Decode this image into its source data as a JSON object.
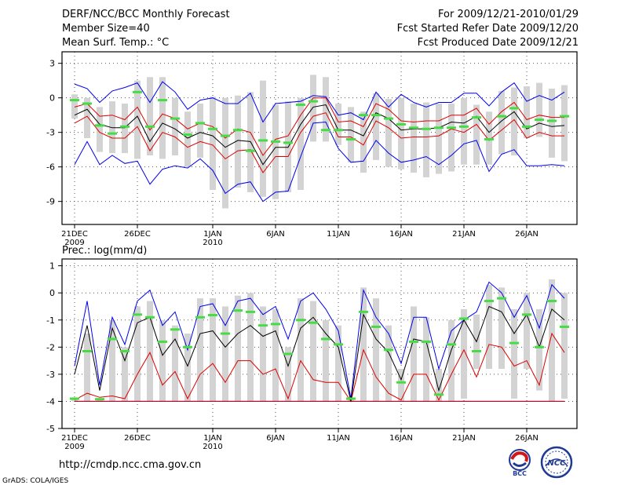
{
  "header": {
    "left": [
      "DERF/NCC/BCC Monthly Forecast",
      "Member Size=40",
      "Mean Surf. Temp.: °C"
    ],
    "right": [
      "For 2009/12/21-2010/01/29",
      "Fcst Started Refer Date 2009/12/20",
      "Fcst Produced Date 2009/12/21"
    ]
  },
  "footer": {
    "url": "http://cmdp.ncc.cma.gov.cn",
    "credit": "GrADS: COLA/IGES"
  },
  "logos": {
    "bcc": "BCC",
    "ncc": "NCC"
  },
  "colors": {
    "box": "#d3d3d3",
    "median": "#44dd44",
    "mean": "#000000",
    "upper": "#0000ee",
    "lower": "#dd0000",
    "grid": "#555555"
  },
  "chart_data": [
    {
      "type": "line",
      "title": "Mean Surf. Temp.: °C",
      "xlabel": "",
      "ylabel": "",
      "ylim": [
        -11,
        4
      ],
      "yticks": [
        3,
        0,
        -3,
        -6,
        -9
      ],
      "ytick_labels": [
        "3",
        "0",
        "-3",
        "-6",
        "-9"
      ],
      "xticks": [
        {
          "day": 1,
          "label": "21DEC",
          "sub": "2009"
        },
        {
          "day": 6,
          "label": "26DEC",
          "sub": ""
        },
        {
          "day": 12,
          "label": "1JAN",
          "sub": "2010"
        },
        {
          "day": 17,
          "label": "6JAN",
          "sub": ""
        },
        {
          "day": 22,
          "label": "11JAN",
          "sub": ""
        },
        {
          "day": 27,
          "label": "16JAN",
          "sub": ""
        },
        {
          "day": 32,
          "label": "21JAN",
          "sub": ""
        },
        {
          "day": 37,
          "label": "26JAN",
          "sub": ""
        }
      ],
      "x": [
        1,
        2,
        3,
        4,
        5,
        6,
        7,
        8,
        9,
        10,
        11,
        12,
        13,
        14,
        15,
        16,
        17,
        18,
        19,
        20,
        21,
        22,
        23,
        24,
        25,
        26,
        27,
        28,
        29,
        30,
        31,
        32,
        33,
        34,
        35,
        36,
        37,
        38,
        39,
        40
      ],
      "series": [
        {
          "name": "box_high",
          "values": [
            0.3,
            0,
            -0.8,
            -0.3,
            -0.5,
            1.5,
            1.8,
            1.8,
            0,
            -1.2,
            -0.5,
            0.1,
            0,
            0.2,
            0.5,
            1.5,
            -0.6,
            -0.3,
            0,
            2,
            1.8,
            -0.5,
            -0.8,
            -1.2,
            0.4,
            -0.1,
            0,
            -0.5,
            -0.4,
            -0.5,
            -0.5,
            0,
            -0.6,
            -1.2,
            0.6,
            0.9,
            1,
            1.3,
            0.8,
            1.1
          ]
        },
        {
          "name": "box_low",
          "values": [
            -1.8,
            -3.5,
            -4.7,
            -4.8,
            -4.8,
            -5.3,
            -5,
            -5.3,
            -5,
            -6,
            -5.2,
            -8,
            -9.6,
            -7.8,
            -8.2,
            -8.6,
            -8.8,
            -8.2,
            -8,
            -3.8,
            -3.8,
            -4.1,
            -5.6,
            -6.5,
            -5.4,
            -6,
            -6.2,
            -6.5,
            -6.9,
            -6.6,
            -6.4,
            -5.8,
            -5.8,
            -5.8,
            -4.9,
            -5,
            -3.5,
            -3.4,
            -5.2,
            -5.5
          ]
        },
        {
          "name": "median",
          "values": [
            -0.2,
            -0.5,
            -2.4,
            -3.1,
            -2.5,
            0.5,
            -2.5,
            -0.2,
            -1.8,
            -3.2,
            -2.2,
            -2.7,
            -3.3,
            -2.8,
            -4.6,
            -3.7,
            -3.8,
            -3.9,
            -0.6,
            -0.3,
            -2.8,
            -2.8,
            -3.6,
            -1.5,
            -1.5,
            -1.8,
            -2.3,
            -2.6,
            -2.7,
            -2.6,
            -2.6,
            -2.5,
            -1.7,
            -3.6,
            -1.6,
            -0.9,
            -2.5,
            -1.9,
            -2,
            -1.6
          ]
        },
        {
          "name": "mean",
          "values": [
            -1.5,
            -1.0,
            -2.3,
            -2.6,
            -2.6,
            -1.6,
            -3.8,
            -2.2,
            -2.7,
            -3.5,
            -3.0,
            -3.3,
            -4.3,
            -3.7,
            -3.8,
            -5.8,
            -4.3,
            -4.3,
            -2.3,
            -0.8,
            -0.6,
            -2.8,
            -2.8,
            -3.3,
            -1.3,
            -1.8,
            -2.8,
            -2.7,
            -2.7,
            -2.6,
            -2.1,
            -2.2,
            -1.6,
            -3.0,
            -2.0,
            -1.2,
            -2.7,
            -2.2,
            -2.5,
            -2.4
          ]
        },
        {
          "name": "upper",
          "values": [
            1.2,
            0.8,
            -0.4,
            0.6,
            0.9,
            1.3,
            -0.4,
            1.4,
            0.5,
            -1.0,
            -0.2,
            0.0,
            -0.5,
            -0.5,
            0.4,
            -2.1,
            -0.5,
            -0.4,
            -0.3,
            0.2,
            0.1,
            -1.5,
            -1.3,
            -1.9,
            0.5,
            -0.8,
            0.3,
            -0.4,
            -0.8,
            -0.4,
            -0.4,
            0.4,
            0.4,
            -0.7,
            0.5,
            1.3,
            -0.3,
            0.2,
            -0.2,
            0.5
          ]
        },
        {
          "name": "lower",
          "values": [
            -5.8,
            -3.8,
            -5.8,
            -5.0,
            -5.7,
            -5.5,
            -7.5,
            -6.2,
            -5.9,
            -6.1,
            -5.3,
            -6.3,
            -8.3,
            -7.5,
            -7.3,
            -9.0,
            -8.2,
            -8.1,
            -5.1,
            -2.2,
            -2.1,
            -4.4,
            -5.6,
            -5.5,
            -3.7,
            -4.8,
            -5.6,
            -5.4,
            -5.1,
            -5.8,
            -5.0,
            -4.0,
            -3.7,
            -6.4,
            -4.9,
            -4.5,
            -5.9,
            -5.9,
            -5.8,
            -5.9
          ]
        },
        {
          "name": "upper_red",
          "values": [
            -0.8,
            -0.5,
            -1.6,
            -1.5,
            -1.9,
            -0.8,
            -2.8,
            -1.4,
            -1.8,
            -2.7,
            -2.2,
            -2.5,
            -3.5,
            -2.7,
            -3.0,
            -5.0,
            -3.6,
            -3.3,
            -1.5,
            0.0,
            0.0,
            -2.1,
            -2.0,
            -2.5,
            -0.5,
            -1.0,
            -2.0,
            -2.1,
            -2.0,
            -2.0,
            -1.5,
            -1.5,
            -0.9,
            -2.3,
            -1.2,
            -0.4,
            -1.9,
            -1.5,
            -1.7,
            -1.7
          ]
        },
        {
          "name": "lower_red",
          "values": [
            -2.2,
            -1.6,
            -3.0,
            -3.5,
            -3.5,
            -2.5,
            -4.6,
            -3.0,
            -3.4,
            -4.3,
            -3.8,
            -4.1,
            -5.3,
            -4.6,
            -4.5,
            -6.5,
            -5.1,
            -5.1,
            -3.0,
            -1.6,
            -1.3,
            -3.4,
            -3.4,
            -4.1,
            -2.0,
            -2.6,
            -3.5,
            -3.4,
            -3.4,
            -3.3,
            -2.7,
            -3.0,
            -2.3,
            -3.7,
            -2.8,
            -1.9,
            -3.5,
            -3.0,
            -3.3,
            -3.3
          ]
        }
      ]
    },
    {
      "type": "line",
      "title": "Prec.: log(mm/d)",
      "xlabel": "",
      "ylabel": "",
      "ylim": [
        -5,
        1.25
      ],
      "yticks": [
        1,
        0,
        -1,
        -2,
        -3,
        -4,
        -5
      ],
      "ytick_labels": [
        "1",
        "0",
        "-1",
        "-2",
        "-3",
        "-4",
        "-5"
      ],
      "xticks": [
        {
          "day": 1,
          "label": "21DEC",
          "sub": "2009"
        },
        {
          "day": 6,
          "label": "26DEC",
          "sub": ""
        },
        {
          "day": 12,
          "label": "1JAN",
          "sub": "2010"
        },
        {
          "day": 17,
          "label": "6JAN",
          "sub": ""
        },
        {
          "day": 22,
          "label": "11JAN",
          "sub": ""
        },
        {
          "day": 27,
          "label": "16JAN",
          "sub": ""
        },
        {
          "day": 32,
          "label": "21JAN",
          "sub": ""
        },
        {
          "day": 37,
          "label": "26JAN",
          "sub": ""
        }
      ],
      "x": [
        1,
        2,
        3,
        4,
        5,
        6,
        7,
        8,
        9,
        10,
        11,
        12,
        13,
        14,
        15,
        16,
        17,
        18,
        19,
        20,
        21,
        22,
        23,
        24,
        25,
        26,
        27,
        28,
        29,
        30,
        31,
        32,
        33,
        34,
        35,
        36,
        37,
        38,
        39,
        40
      ],
      "series": [
        {
          "name": "box_high",
          "values": [
            -3.9,
            -1.5,
            -3.9,
            -1.0,
            -2.0,
            -0.5,
            -0.3,
            -1.0,
            -1.2,
            -1.5,
            -0.2,
            -0.2,
            -0.5,
            -0.1,
            0.0,
            -0.5,
            -0.6,
            -2.0,
            -0.2,
            -0.3,
            -1.0,
            -1.2,
            -3.9,
            0.2,
            -0.2,
            -1.2,
            -2.8,
            -0.5,
            -0.9,
            -2.8,
            -1.0,
            -0.6,
            -0.8,
            0.3,
            0.2,
            -0.6,
            0.0,
            -0.6,
            0.5,
            0.0
          ]
        },
        {
          "name": "box_low",
          "values": [
            -4.0,
            -4.0,
            -4.0,
            -4.0,
            -4.0,
            -4.0,
            -4.0,
            -4.0,
            -4.0,
            -4.0,
            -4.0,
            -4.0,
            -4.0,
            -4.0,
            -4.0,
            -4.0,
            -4.0,
            -4.0,
            -4.0,
            -4.0,
            -4.0,
            -4.0,
            -4.0,
            -4.0,
            -4.0,
            -4.0,
            -4.0,
            -4.0,
            -4.0,
            -4.0,
            -4.0,
            -3.9,
            -2.8,
            -2.8,
            -2.8,
            -3.9,
            -2.8,
            -3.6,
            -4.0,
            -3.9
          ]
        },
        {
          "name": "median",
          "values": [
            -3.9,
            -2.15,
            -3.92,
            -1.7,
            -2.15,
            -0.8,
            -0.9,
            -1.8,
            -1.35,
            -2.0,
            -0.9,
            -0.82,
            -1.5,
            -0.65,
            -0.7,
            -1.2,
            -1.15,
            -2.25,
            -1.0,
            -1.1,
            -1.7,
            -1.9,
            -3.9,
            -0.7,
            -1.25,
            -2.1,
            -3.3,
            -1.8,
            -1.8,
            -3.75,
            -1.9,
            -0.95,
            -2.15,
            -0.3,
            -0.2,
            -1.85,
            -0.8,
            -2.0,
            -0.3,
            -1.25
          ]
        },
        {
          "name": "mean",
          "values": [
            -3.0,
            -1.2,
            -3.6,
            -1.3,
            -2.5,
            -1.1,
            -0.9,
            -2.3,
            -1.7,
            -2.7,
            -1.5,
            -1.4,
            -2.0,
            -1.5,
            -1.2,
            -1.6,
            -1.4,
            -2.7,
            -1.3,
            -0.9,
            -1.5,
            -2.0,
            -4.0,
            -0.8,
            -1.7,
            -2.2,
            -3.2,
            -1.7,
            -1.8,
            -3.6,
            -2.1,
            -1.0,
            -1.8,
            -0.5,
            -0.7,
            -1.5,
            -0.8,
            -2.0,
            -0.6,
            -1.0
          ]
        },
        {
          "name": "upper",
          "values": [
            -2.7,
            -0.3,
            -3.4,
            -0.9,
            -1.9,
            -0.3,
            0.1,
            -1.2,
            -0.7,
            -2.1,
            -0.5,
            -0.4,
            -1.2,
            -0.3,
            -0.2,
            -0.8,
            -0.5,
            -1.7,
            -0.3,
            0.0,
            -0.6,
            -1.4,
            -3.9,
            0.1,
            -0.9,
            -1.5,
            -2.6,
            -0.9,
            -0.9,
            -2.8,
            -1.4,
            -1.0,
            -0.7,
            0.4,
            0.0,
            -0.9,
            -0.1,
            -1.3,
            0.3,
            -0.2
          ]
        },
        {
          "name": "lower",
          "values": [
            -4,
            -4,
            -4,
            -4,
            -4,
            -4,
            -4,
            -4,
            -4,
            -4,
            -4,
            -4,
            -4,
            -4,
            -4,
            -4,
            -4,
            -4,
            -4,
            -4,
            -4,
            -4,
            -4,
            -4,
            -4,
            -4,
            -4,
            -4,
            -4,
            -4,
            -4,
            -4,
            -4,
            -4,
            -4,
            -4,
            -4,
            -4,
            -4,
            -4
          ]
        },
        {
          "name": "upper_red",
          "values": [
            -3.95,
            -3.7,
            -3.85,
            -3.8,
            -3.9,
            -3.0,
            -2.2,
            -3.4,
            -2.9,
            -3.9,
            -3.0,
            -2.6,
            -3.3,
            -2.5,
            -2.5,
            -3.0,
            -2.8,
            -3.9,
            -2.5,
            -3.2,
            -3.3,
            -3.3,
            -4.0,
            -2.1,
            -3.1,
            -3.7,
            -3.95,
            -3.0,
            -3.0,
            -3.95,
            -3.0,
            -2.1,
            -3.1,
            -1.9,
            -2.0,
            -2.7,
            -2.5,
            -3.4,
            -1.5,
            -2.2
          ]
        },
        {
          "name": "lower_red",
          "values": [
            -4,
            -4,
            -4,
            -4,
            -4,
            -4,
            -4,
            -4,
            -4,
            -4,
            -4,
            -4,
            -4,
            -4,
            -4,
            -4,
            -4,
            -4,
            -4,
            -4,
            -4,
            -4,
            -4,
            -4,
            -4,
            -4,
            -4,
            -4,
            -4,
            -4,
            -4,
            -4,
            -4,
            -4,
            -4,
            -4,
            -4,
            -4,
            -4,
            -4
          ]
        }
      ]
    }
  ]
}
